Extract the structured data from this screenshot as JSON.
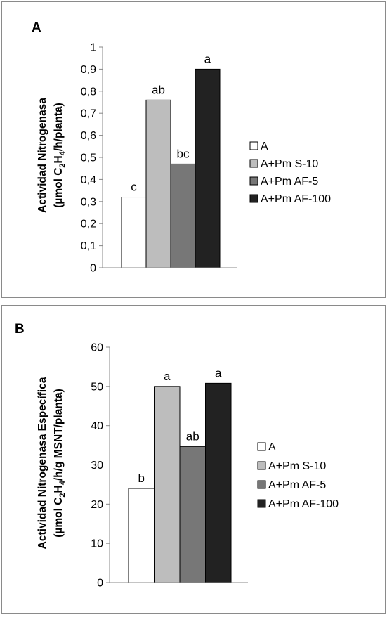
{
  "panels": [
    {
      "label": "A",
      "y_title_line1": "Actividad Nitrogenasa",
      "y_title_line2": [
        "(µmol C",
        "2",
        "H",
        "4",
        "/h/planta)"
      ]
    },
    {
      "label": "B",
      "y_title_line1": "Actividad Nitrogenasa Específica",
      "y_title_line2": [
        "(µmol C",
        "2",
        "H",
        "4",
        "/h/g MSNT/planta)"
      ]
    }
  ],
  "legend": [
    "A",
    "A+Pm S-10",
    "A+Pm AF-5",
    "A+Pm AF-100"
  ],
  "colors": [
    "#ffffff",
    "#bdbdbd",
    "#777777",
    "#222222"
  ],
  "chart_data": [
    {
      "type": "bar",
      "panel": "A",
      "categories": [
        "A",
        "A+Pm S-10",
        "A+Pm AF-5",
        "A+Pm AF-100"
      ],
      "values": [
        0.32,
        0.76,
        0.47,
        0.9
      ],
      "significance_letters": [
        "c",
        "ab",
        "bc",
        "a"
      ],
      "ylim": [
        0,
        1
      ],
      "yticks": [
        "0",
        "0,1",
        "0,2",
        "0,3",
        "0,4",
        "0,5",
        "0,6",
        "0,7",
        "0,8",
        "0,9",
        "1"
      ],
      "ylabel": "Actividad Nitrogenasa (µmol C2H4/h/planta)",
      "legend_position": "right",
      "grid": false
    },
    {
      "type": "bar",
      "panel": "B",
      "categories": [
        "A",
        "A+Pm S-10",
        "A+Pm AF-5",
        "A+Pm AF-100"
      ],
      "values": [
        24,
        50,
        34.7,
        50.8
      ],
      "significance_letters": [
        "b",
        "a",
        "ab",
        "a"
      ],
      "ylim": [
        0,
        60
      ],
      "yticks": [
        "0",
        "10",
        "20",
        "30",
        "40",
        "50",
        "60"
      ],
      "ylabel": "Actividad Nitrogenasa Específica (µmol C2H4/h/g MSNT/planta)",
      "legend_position": "right",
      "grid": false
    }
  ]
}
